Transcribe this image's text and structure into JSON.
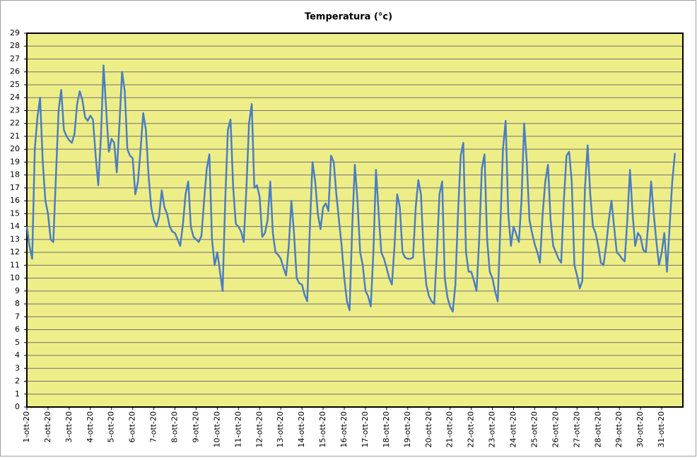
{
  "chart_data": {
    "type": "line",
    "title": "Temperatura (°c)",
    "x": [
      1,
      1.125,
      1.25,
      1.375,
      1.5,
      1.625,
      1.75,
      1.875,
      2,
      2.125,
      2.25,
      2.375,
      2.5,
      2.625,
      2.75,
      2.875,
      3,
      3.125,
      3.25,
      3.375,
      3.5,
      3.625,
      3.75,
      3.875,
      4,
      4.125,
      4.25,
      4.375,
      4.5,
      4.625,
      4.75,
      4.875,
      5,
      5.125,
      5.25,
      5.375,
      5.5,
      5.625,
      5.75,
      5.875,
      6,
      6.125,
      6.25,
      6.375,
      6.5,
      6.625,
      6.75,
      6.875,
      7,
      7.125,
      7.25,
      7.375,
      7.5,
      7.625,
      7.75,
      7.875,
      8,
      8.125,
      8.25,
      8.375,
      8.5,
      8.625,
      8.75,
      8.875,
      9,
      9.125,
      9.25,
      9.375,
      9.5,
      9.625,
      9.75,
      9.875,
      10,
      10.125,
      10.25,
      10.375,
      10.5,
      10.625,
      10.75,
      10.875,
      11,
      11.125,
      11.25,
      11.375,
      11.5,
      11.625,
      11.75,
      11.875,
      12,
      12.125,
      12.25,
      12.375,
      12.5,
      12.625,
      12.75,
      12.875,
      13,
      13.125,
      13.25,
      13.375,
      13.5,
      13.625,
      13.75,
      13.875,
      14,
      14.125,
      14.25,
      14.375,
      14.5,
      14.625,
      14.75,
      14.875,
      15,
      15.125,
      15.25,
      15.375,
      15.5,
      15.625,
      15.75,
      15.875,
      16,
      16.125,
      16.25,
      16.375,
      16.5,
      16.625,
      16.75,
      16.875,
      17,
      17.125,
      17.25,
      17.375,
      17.5,
      17.625,
      17.75,
      17.875,
      18,
      18.125,
      18.25,
      18.375,
      18.5,
      18.625,
      18.75,
      18.875,
      19,
      19.125,
      19.25,
      19.375,
      19.5,
      19.625,
      19.75,
      19.875,
      20,
      20.125,
      20.25,
      20.375,
      20.5,
      20.625,
      20.75,
      20.875,
      21,
      21.125,
      21.25,
      21.375,
      21.5,
      21.625,
      21.75,
      21.875,
      22,
      22.125,
      22.25,
      22.375,
      22.5,
      22.625,
      22.75,
      22.875,
      23,
      23.125,
      23.25,
      23.375,
      23.5,
      23.625,
      23.75,
      23.875,
      24,
      24.125,
      24.25,
      24.375,
      24.5,
      24.625,
      24.75,
      24.875,
      25,
      25.125,
      25.25,
      25.375,
      25.5,
      25.625,
      25.75,
      25.875,
      26,
      26.125,
      26.25,
      26.375,
      26.5,
      26.625,
      26.75,
      26.875,
      27,
      27.125,
      27.25,
      27.375,
      27.5,
      27.625,
      27.75,
      27.875,
      28,
      28.125,
      28.25,
      28.375,
      28.5,
      28.625,
      28.75,
      28.875,
      29,
      29.125,
      29.25,
      29.375,
      29.5,
      29.625,
      29.75,
      29.875,
      30,
      30.125,
      30.25,
      30.375,
      30.5,
      30.625,
      30.75,
      30.875,
      31,
      31.125,
      31.25,
      31.375,
      31.5,
      31.625
    ],
    "values": [
      14,
      12.5,
      11.5,
      20,
      22.5,
      24,
      19,
      16,
      15,
      13,
      12.8,
      18,
      23,
      24.6,
      21.5,
      21,
      20.7,
      20.5,
      21.2,
      23.5,
      24.5,
      23.8,
      22.5,
      22.2,
      22.6,
      22.3,
      19.5,
      17.2,
      21,
      26.5,
      23,
      19.8,
      20.8,
      20.5,
      18.2,
      22,
      26,
      24.5,
      20,
      19.5,
      19.3,
      16.5,
      17.5,
      20,
      22.8,
      21.5,
      18,
      15.5,
      14.5,
      14,
      14.8,
      16.8,
      15.5,
      15,
      14,
      13.6,
      13.5,
      13,
      12.5,
      14.2,
      16.5,
      17.5,
      14,
      13.2,
      13,
      12.8,
      13.3,
      16,
      18.5,
      19.6,
      13,
      11,
      12,
      10.5,
      9,
      16,
      21.5,
      22.3,
      17,
      14.2,
      14,
      13.6,
      12.8,
      17,
      22,
      23.5,
      17,
      17.2,
      16.3,
      13.2,
      13.5,
      14.5,
      17.5,
      13.5,
      12,
      11.8,
      11.5,
      10.8,
      10.2,
      12.5,
      16,
      13.5,
      10,
      9.6,
      9.5,
      8.7,
      8.2,
      14,
      19,
      17.5,
      15,
      13.8,
      15.5,
      15.8,
      15.2,
      19.5,
      19,
      16.5,
      14.5,
      12.5,
      10,
      8.2,
      7.5,
      14,
      18.8,
      16,
      12,
      11,
      9,
      8.6,
      7.8,
      12,
      18.4,
      15,
      12,
      11.5,
      10.8,
      10,
      9.5,
      12.5,
      16.5,
      15.5,
      12,
      11.6,
      11.5,
      11.5,
      11.6,
      15.5,
      17.6,
      16.5,
      12,
      9.5,
      8.6,
      8.2,
      8,
      12,
      16.5,
      17.5,
      10,
      8.5,
      7.8,
      7.4,
      9.5,
      15,
      19.5,
      20.5,
      12,
      10.5,
      10.5,
      9.8,
      9,
      13,
      18.5,
      19.6,
      13,
      10.5,
      10,
      9,
      8.2,
      14,
      20,
      22.2,
      15,
      12.5,
      14,
      13.4,
      12.8,
      16,
      22,
      19,
      14.5,
      13.5,
      12.6,
      12,
      11.2,
      15,
      17.5,
      18.8,
      14.5,
      12.5,
      12,
      11.5,
      11.2,
      16,
      19.5,
      19.8,
      17.5,
      11,
      10.2,
      9.2,
      9.8,
      17,
      20.3,
      16.5,
      14,
      13.5,
      12.5,
      11.2,
      11,
      12.5,
      14.5,
      16,
      14,
      12,
      11.8,
      11.5,
      11.3,
      14.5,
      18.4,
      15,
      12.5,
      13.5,
      13.2,
      12.2,
      12,
      14.5,
      17.5,
      15,
      12.8,
      11,
      12,
      13.5,
      10.5,
      14,
      17.5,
      19.7
    ],
    "color": "#4a7ec4",
    "background": "#eeee88",
    "grid": true,
    "xlim": [
      1,
      32
    ],
    "xticks": [
      {
        "value": 1,
        "label": "1-ott-20"
      },
      {
        "value": 2,
        "label": "2-ott-20"
      },
      {
        "value": 3,
        "label": "3-ott-20"
      },
      {
        "value": 4,
        "label": "4-ott-20"
      },
      {
        "value": 5,
        "label": "5-ott-20"
      },
      {
        "value": 6,
        "label": "6-ott-20"
      },
      {
        "value": 7,
        "label": "7-ott-20"
      },
      {
        "value": 8,
        "label": "8-ott-20"
      },
      {
        "value": 9,
        "label": "9-ott-20"
      },
      {
        "value": 10,
        "label": "10-ott-20"
      },
      {
        "value": 11,
        "label": "11-ott-20"
      },
      {
        "value": 12,
        "label": "12-ott-20"
      },
      {
        "value": 13,
        "label": "13-ott-20"
      },
      {
        "value": 14,
        "label": "14-ott-20"
      },
      {
        "value": 15,
        "label": "15-ott-20"
      },
      {
        "value": 16,
        "label": "16-ott-20"
      },
      {
        "value": 17,
        "label": "17-ott-20"
      },
      {
        "value": 18,
        "label": "18-ott-20"
      },
      {
        "value": 19,
        "label": "19-ott-20"
      },
      {
        "value": 20,
        "label": "20-ott-20"
      },
      {
        "value": 21,
        "label": "21-ott-20"
      },
      {
        "value": 22,
        "label": "22-ott-20"
      },
      {
        "value": 23,
        "label": "23-ott-20"
      },
      {
        "value": 24,
        "label": "24-ott-20"
      },
      {
        "value": 25,
        "label": "25-ott-20"
      },
      {
        "value": 26,
        "label": "26-ott-20"
      },
      {
        "value": 27,
        "label": "27-ott-20"
      },
      {
        "value": 28,
        "label": "28-ott-20"
      },
      {
        "value": 29,
        "label": "29-ott-20"
      },
      {
        "value": 30,
        "label": "30-ott-20"
      },
      {
        "value": 31,
        "label": "31-ott-20"
      }
    ],
    "ylim": [
      0,
      29
    ],
    "yticks": [
      0,
      1,
      2,
      3,
      4,
      5,
      6,
      7,
      8,
      9,
      10,
      11,
      12,
      13,
      14,
      15,
      16,
      17,
      18,
      19,
      20,
      21,
      22,
      23,
      24,
      25,
      26,
      27,
      28,
      29
    ]
  }
}
